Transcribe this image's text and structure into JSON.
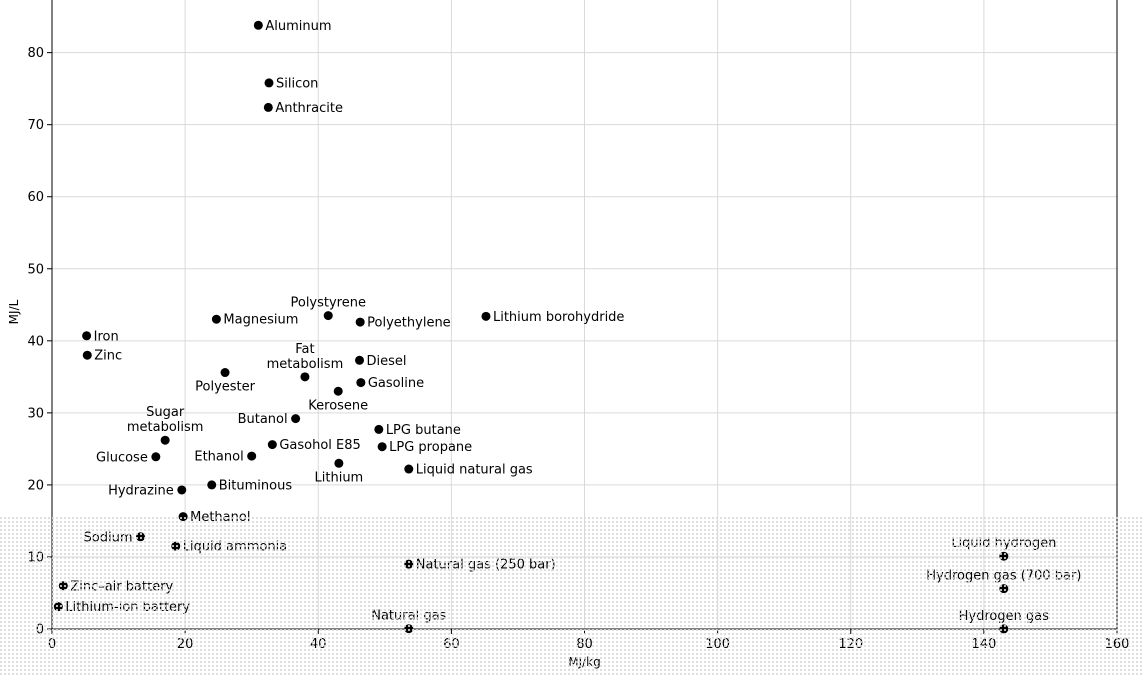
{
  "chart_data": {
    "type": "scatter",
    "title": "",
    "xlabel": "MJ/kg",
    "ylabel": "MJ/L",
    "xlim": [
      0,
      160
    ],
    "ylim": [
      0,
      88
    ],
    "xticks": [
      0,
      20,
      40,
      60,
      80,
      100,
      120,
      140,
      160
    ],
    "yticks": [
      0,
      10,
      20,
      30,
      40,
      50,
      60,
      70,
      80
    ],
    "grid": true,
    "points": [
      {
        "label": "Aluminum",
        "x": 31,
        "y": 83.8,
        "anchor": "left"
      },
      {
        "label": "Silicon",
        "x": 32.6,
        "y": 75.8,
        "anchor": "left"
      },
      {
        "label": "Anthracite",
        "x": 32.5,
        "y": 72.4,
        "anchor": "left"
      },
      {
        "label": "Polystyrene",
        "x": 41.5,
        "y": 43.5,
        "anchor": "above"
      },
      {
        "label": "Magnesium",
        "x": 24.7,
        "y": 43.0,
        "anchor": "left"
      },
      {
        "label": "Polyethylene",
        "x": 46.3,
        "y": 42.6,
        "anchor": "left"
      },
      {
        "label": "Lithium borohydride",
        "x": 65.2,
        "y": 43.4,
        "anchor": "left"
      },
      {
        "label": "Iron",
        "x": 5.2,
        "y": 40.7,
        "anchor": "left"
      },
      {
        "label": "Zinc",
        "x": 5.3,
        "y": 38.0,
        "anchor": "left"
      },
      {
        "label": "Fat metabolism",
        "x": 38,
        "y": 35,
        "anchor": "above-left"
      },
      {
        "label": "Diesel",
        "x": 46.2,
        "y": 37.3,
        "anchor": "left"
      },
      {
        "label": "Polyester",
        "x": 26,
        "y": 35.6,
        "anchor": "below"
      },
      {
        "label": "Gasoline",
        "x": 46.4,
        "y": 34.2,
        "anchor": "left"
      },
      {
        "label": "Kerosene",
        "x": 43,
        "y": 33,
        "anchor": "below"
      },
      {
        "label": "Sugar metabolism",
        "x": 17,
        "y": 26.2,
        "anchor": "above"
      },
      {
        "label": "Butanol",
        "x": 36.6,
        "y": 29.2,
        "anchor": "right"
      },
      {
        "label": "LPG butane",
        "x": 49.1,
        "y": 27.7,
        "anchor": "left"
      },
      {
        "label": "Gasohol E85",
        "x": 33.1,
        "y": 25.6,
        "anchor": "left"
      },
      {
        "label": "LPG propane",
        "x": 49.6,
        "y": 25.3,
        "anchor": "left"
      },
      {
        "label": "Glucose",
        "x": 15.6,
        "y": 23.9,
        "anchor": "right"
      },
      {
        "label": "Ethanol",
        "x": 30,
        "y": 24,
        "anchor": "right"
      },
      {
        "label": "Lithium",
        "x": 43.1,
        "y": 23.0,
        "anchor": "below"
      },
      {
        "label": "Liquid natural gas",
        "x": 53.6,
        "y": 22.2,
        "anchor": "left"
      },
      {
        "label": "Hydrazine",
        "x": 19.5,
        "y": 19.3,
        "anchor": "right"
      },
      {
        "label": "Bituminous",
        "x": 24,
        "y": 20,
        "anchor": "left"
      },
      {
        "label": "Methanol",
        "x": 19.7,
        "y": 15.6,
        "anchor": "left"
      },
      {
        "label": "Sodium",
        "x": 13.3,
        "y": 12.8,
        "anchor": "right"
      },
      {
        "label": "Liquid ammonia",
        "x": 18.6,
        "y": 11.5,
        "anchor": "left"
      },
      {
        "label": "Natural gas (250 bar)",
        "x": 53.6,
        "y": 9.0,
        "anchor": "left"
      },
      {
        "label": "Zinc–air battery",
        "x": 1.7,
        "y": 6.0,
        "anchor": "left"
      },
      {
        "label": "Lithium-ion battery",
        "x": 0.95,
        "y": 3.1,
        "anchor": "left"
      },
      {
        "label": "Natural gas",
        "x": 53.6,
        "y": 0.04,
        "anchor": "above"
      },
      {
        "label": "Liquid hydrogen",
        "x": 143,
        "y": 10.1,
        "anchor": "above"
      },
      {
        "label": "Hydrogen gas (700 bar)",
        "x": 143,
        "y": 5.6,
        "anchor": "above"
      },
      {
        "label": "Hydrogen gas",
        "x": 143,
        "y": 0.01,
        "anchor": "above"
      }
    ]
  }
}
